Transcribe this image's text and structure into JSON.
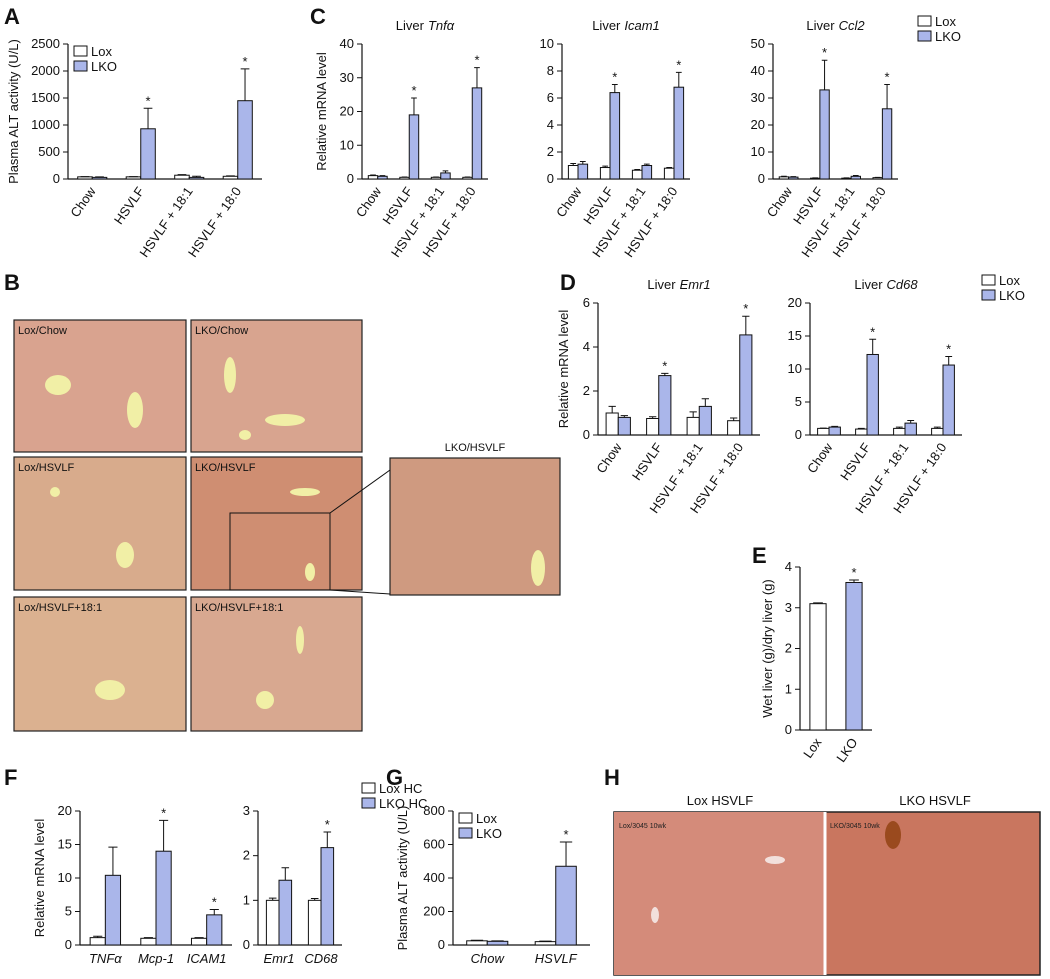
{
  "panel_letters": [
    "A",
    "B",
    "C",
    "D",
    "E",
    "F",
    "G",
    "H"
  ],
  "micrographs": {
    "panel_b": [
      "Lox/Chow",
      "LKO/Chow",
      "Lox/HSVLF",
      "LKO/HSVLF",
      "Lox/HSVLF+18:1",
      "LKO/HSVLF+18:1"
    ],
    "zoom_label": "LKO/HSVLF",
    "panel_h": {
      "titles": [
        "Lox HSVLF",
        "LKO HSVLF"
      ],
      "stamps": [
        "Lox/3045 10wk",
        "LKO/3045 10wk"
      ]
    }
  },
  "chart_data": [
    {
      "type": "bar",
      "y_label": "Plasma ALT activity (U/L)",
      "categories": [
        "Chow",
        "HSVLF",
        "HSVLF + 18:1",
        "HSVLF + 18:0"
      ],
      "ylim": [
        0,
        2500
      ],
      "yticks": [
        0,
        500,
        1000,
        1500,
        2000,
        2500
      ],
      "legend": "upper left",
      "series": [
        {
          "name": "Lox",
          "color": "#ffffff",
          "values": [
            40,
            40,
            70,
            50
          ],
          "errors": [
            5,
            5,
            10,
            8
          ],
          "markers": [
            null,
            null,
            null,
            null
          ]
        },
        {
          "name": "LKO",
          "color": "#aab6ea",
          "values": [
            30,
            930,
            30,
            1450
          ],
          "errors": [
            10,
            380,
            20,
            590
          ],
          "markers": [
            null,
            "*",
            null,
            "*"
          ]
        }
      ]
    },
    {
      "type": "bar",
      "title": "Liver",
      "title_italic": "Tnfα",
      "y_label": "Relative mRNA level",
      "categories": [
        "Chow",
        "HSVLF",
        "HSVLF + 18:1",
        "HSVLF + 18:0"
      ],
      "ylim": [
        0,
        40
      ],
      "yticks": [
        0,
        10,
        20,
        30,
        40
      ],
      "series": [
        {
          "name": "Lox",
          "color": "#ffffff",
          "values": [
            1,
            0.5,
            0.5,
            0.5
          ],
          "errors": [
            0.2,
            0.1,
            0.1,
            0.1
          ],
          "markers": [
            null,
            null,
            null,
            null
          ]
        },
        {
          "name": "LKO",
          "color": "#aab6ea",
          "values": [
            0.8,
            19,
            1.8,
            27
          ],
          "errors": [
            0.2,
            5,
            0.6,
            6
          ],
          "markers": [
            null,
            "*",
            null,
            "*"
          ]
        }
      ]
    },
    {
      "type": "bar",
      "title": "Liver",
      "title_italic": "Icam1",
      "categories": [
        "Chow",
        "HSVLF",
        "HSVLF + 18:1",
        "HSVLF + 18:0"
      ],
      "ylim": [
        0,
        10
      ],
      "yticks": [
        0,
        2,
        4,
        6,
        8,
        10
      ],
      "series": [
        {
          "name": "Lox",
          "color": "#ffffff",
          "values": [
            1.0,
            0.85,
            0.65,
            0.8
          ],
          "errors": [
            0.15,
            0.1,
            0.05,
            0.05
          ],
          "markers": [
            null,
            null,
            null,
            null
          ]
        },
        {
          "name": "LKO",
          "color": "#aab6ea",
          "values": [
            1.1,
            6.4,
            1.0,
            6.8
          ],
          "errors": [
            0.2,
            0.6,
            0.1,
            1.1
          ],
          "markers": [
            null,
            "*",
            null,
            "*"
          ]
        }
      ]
    },
    {
      "type": "bar",
      "title": "Liver",
      "title_italic": "Ccl2",
      "categories": [
        "Chow",
        "HSVLF",
        "HSVLF + 18:1",
        "HSVLF + 18:0"
      ],
      "ylim": [
        0,
        50
      ],
      "yticks": [
        0,
        10,
        20,
        30,
        40,
        50
      ],
      "legend": "upper right",
      "series": [
        {
          "name": "Lox",
          "color": "#ffffff",
          "values": [
            0.8,
            0.3,
            0.3,
            0.5
          ],
          "errors": [
            0.2,
            0.1,
            0.1,
            0.1
          ],
          "markers": [
            null,
            null,
            null,
            null
          ]
        },
        {
          "name": "LKO",
          "color": "#aab6ea",
          "values": [
            0.7,
            33,
            1,
            26
          ],
          "errors": [
            0.2,
            11,
            0.3,
            9
          ],
          "markers": [
            null,
            "*",
            null,
            "*"
          ]
        }
      ]
    },
    {
      "type": "bar",
      "title": "Liver",
      "title_italic": "Emr1",
      "y_label": "Relative mRNA level",
      "categories": [
        "Chow",
        "HSVLF",
        "HSVLF + 18:1",
        "HSVLF + 18:0"
      ],
      "ylim": [
        0,
        6
      ],
      "yticks": [
        0,
        2,
        4,
        6
      ],
      "series": [
        {
          "name": "Lox",
          "color": "#ffffff",
          "values": [
            1.0,
            0.75,
            0.8,
            0.65
          ],
          "errors": [
            0.3,
            0.08,
            0.25,
            0.12
          ],
          "markers": [
            null,
            null,
            null,
            null
          ]
        },
        {
          "name": "LKO",
          "color": "#aab6ea",
          "values": [
            0.8,
            2.7,
            1.3,
            4.55
          ],
          "errors": [
            0.08,
            0.1,
            0.35,
            0.85
          ],
          "markers": [
            null,
            "*",
            null,
            "*"
          ]
        }
      ]
    },
    {
      "type": "bar",
      "title": "Liver",
      "title_italic": "Cd68",
      "categories": [
        "Chow",
        "HSVLF",
        "HSVLF + 18:1",
        "HSVLF + 18:0"
      ],
      "ylim": [
        0,
        20
      ],
      "yticks": [
        0,
        5,
        10,
        15,
        20
      ],
      "legend": "upper right",
      "series": [
        {
          "name": "Lox",
          "color": "#ffffff",
          "values": [
            1,
            0.9,
            1,
            1
          ],
          "errors": [
            0.05,
            0.1,
            0.2,
            0.2
          ],
          "markers": [
            null,
            null,
            null,
            null
          ]
        },
        {
          "name": "LKO",
          "color": "#aab6ea",
          "values": [
            1.2,
            12.2,
            1.8,
            10.6
          ],
          "errors": [
            0.1,
            2.3,
            0.4,
            1.3
          ],
          "markers": [
            null,
            "*",
            null,
            "*"
          ]
        }
      ]
    },
    {
      "type": "bar",
      "y_label": "Wet liver (g)/dry liver (g)",
      "categories": [
        "Lox",
        "LKO"
      ],
      "ylim": [
        0,
        4
      ],
      "yticks": [
        0,
        1,
        2,
        3,
        4
      ],
      "series": [
        {
          "colors": [
            "#ffffff",
            "#aab6ea"
          ],
          "values": [
            3.1,
            3.62
          ],
          "errors": [
            0.02,
            0.06
          ],
          "markers": [
            null,
            "*"
          ]
        }
      ]
    },
    {
      "type": "bar",
      "y_label": "Relative mRNA level",
      "categories_italic": true,
      "categories": [
        "TNFα",
        "Mcp-1",
        "ICAM1"
      ],
      "ylim": [
        0,
        20
      ],
      "yticks": [
        0,
        5,
        10,
        15,
        20
      ],
      "series": [
        {
          "name": "Lox HC",
          "color": "#ffffff",
          "values": [
            1.1,
            1.0,
            1.0
          ],
          "errors": [
            0.2,
            0.1,
            0.1
          ],
          "markers": [
            null,
            null,
            null
          ]
        },
        {
          "name": "LKO HC",
          "color": "#aab6ea",
          "values": [
            10.4,
            14,
            4.5
          ],
          "errors": [
            4.2,
            4.6,
            0.8
          ],
          "markers": [
            null,
            "*",
            "*"
          ]
        }
      ]
    },
    {
      "type": "bar",
      "categories_italic": true,
      "categories": [
        "Emr1",
        "CD68"
      ],
      "ylim": [
        0,
        3
      ],
      "yticks": [
        0,
        1,
        2,
        3
      ],
      "legend": "upper right",
      "series": [
        {
          "name": "Lox HC",
          "color": "#ffffff",
          "values": [
            1.0,
            1.0
          ],
          "errors": [
            0.05,
            0.04
          ],
          "markers": [
            null,
            null
          ]
        },
        {
          "name": "LKO HC",
          "color": "#aab6ea",
          "values": [
            1.45,
            2.18
          ],
          "errors": [
            0.28,
            0.35
          ],
          "markers": [
            null,
            "*"
          ]
        }
      ]
    },
    {
      "type": "bar",
      "y_label": "Plasma ALT activity (U/L)",
      "categories_italic": true,
      "categories": [
        "Chow",
        "HSVLF"
      ],
      "ylim": [
        0,
        800
      ],
      "yticks": [
        0,
        200,
        400,
        600,
        800
      ],
      "legend": "upper left",
      "series": [
        {
          "name": "Lox",
          "color": "#ffffff",
          "values": [
            25,
            20
          ],
          "errors": [
            3,
            3
          ],
          "markers": [
            null,
            null
          ]
        },
        {
          "name": "LKO",
          "color": "#aab6ea",
          "values": [
            22,
            470
          ],
          "errors": [
            3,
            145
          ],
          "markers": [
            null,
            "*"
          ]
        }
      ]
    }
  ]
}
